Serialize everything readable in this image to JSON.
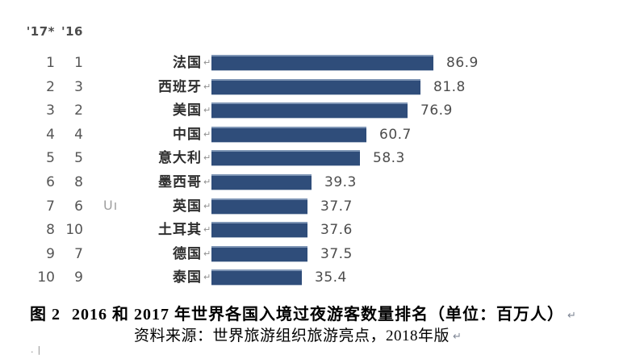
{
  "chart_data": {
    "type": "bar",
    "orientation": "horizontal",
    "title": "",
    "unit": "百万人",
    "header": {
      "rank_2017": "'17*",
      "rank_2016": "'16"
    },
    "categories": [
      "法国",
      "西班牙",
      "美国",
      "中国",
      "意大利",
      "墨西哥",
      "英国",
      "土耳其",
      "德国",
      "泰国"
    ],
    "values": [
      86.9,
      81.8,
      76.9,
      60.7,
      58.3,
      39.3,
      37.7,
      37.6,
      37.5,
      35.4
    ],
    "rows": [
      {
        "rank_2017": "1",
        "rank_2016": "1",
        "country": "法国",
        "value": "86.9"
      },
      {
        "rank_2017": "2",
        "rank_2016": "3",
        "country": "西班牙",
        "value": "81.8"
      },
      {
        "rank_2017": "3",
        "rank_2016": "2",
        "country": "美国",
        "value": "76.9"
      },
      {
        "rank_2017": "4",
        "rank_2016": "4",
        "country": "中国",
        "value": "60.7"
      },
      {
        "rank_2017": "5",
        "rank_2016": "5",
        "country": "意大利",
        "value": "58.3"
      },
      {
        "rank_2017": "6",
        "rank_2016": "8",
        "country": "墨西哥",
        "value": "39.3"
      },
      {
        "rank_2017": "7",
        "rank_2016": "6",
        "country": "英国",
        "value": "37.7"
      },
      {
        "rank_2017": "8",
        "rank_2016": "10",
        "country": "土耳其",
        "value": "37.6"
      },
      {
        "rank_2017": "9",
        "rank_2016": "7",
        "country": "德国",
        "value": "37.5"
      },
      {
        "rank_2017": "10",
        "rank_2016": "9",
        "country": "泰国",
        "value": "35.4"
      }
    ],
    "xlim": [
      0,
      86.9
    ],
    "bar_color": "#2F4D7A",
    "grid": false,
    "legend": "none"
  },
  "caption": {
    "figure_label": "图 2",
    "title": "2016 和 2017 年世界各国入境过夜游客数量排名（单位：百万人）",
    "source": "资料来源：世界旅游组织旅游亮点，2018年版"
  },
  "glyphs": {
    "return_mark": "↵"
  },
  "artifacts": {
    "cropped_text": "Uı",
    "clipped_marks": ".|"
  },
  "colors": {
    "bar_fill": "#2F4D7A",
    "bar_top_edge": "#7e95b5",
    "rank_value_text": "#4c4c4c",
    "country_text": "#2e2e2e",
    "return_mark": "#8f8f8f",
    "caption_text": "#000000",
    "background": "#ffffff"
  }
}
